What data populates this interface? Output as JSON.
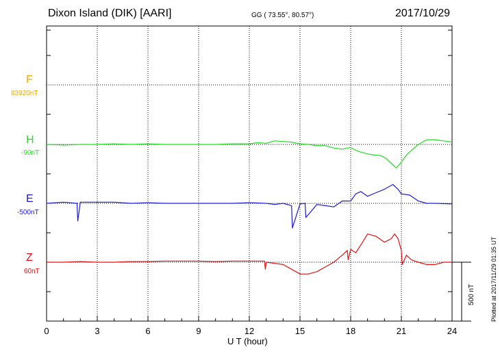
{
  "header": {
    "station": "Dixon Island (DIK)  [AARI]",
    "coords": "GG ( 73.55°,  80.57°)",
    "date": "2017/10/29"
  },
  "side_note": "Plotted at 2017/11/29 01:35 UT",
  "scale_label": "500 nT",
  "colors": {
    "F": "#f0a800",
    "H": "#22dd22",
    "E": "#1a1ad6",
    "Z": "#e01010"
  },
  "chart_data": {
    "type": "line",
    "xlabel": "U T (hour)",
    "xlim": [
      0,
      24
    ],
    "x_ticks": [
      "0",
      "3",
      "6",
      "9",
      "12",
      "15",
      "18",
      "21",
      "24"
    ],
    "scale_bar_nT": 500,
    "series": [
      {
        "name": "F",
        "baseline": "83920nT",
        "x": [],
        "values": []
      },
      {
        "name": "H",
        "baseline": "-90nT",
        "x": [
          0,
          1,
          2,
          3,
          4,
          5,
          6,
          7,
          8,
          9,
          10,
          11,
          12,
          12.5,
          13,
          13.5,
          14,
          14.5,
          15,
          15.5,
          16,
          16.5,
          17,
          17.5,
          18,
          18.3,
          18.6,
          19,
          19.4,
          19.8,
          20.1,
          20.4,
          20.7,
          21,
          21.3,
          21.6,
          22,
          22.5,
          23,
          23.5,
          24
        ],
        "values": [
          0,
          -5,
          0,
          0,
          5,
          0,
          5,
          0,
          0,
          0,
          0,
          5,
          5,
          15,
          10,
          30,
          25,
          20,
          5,
          0,
          -10,
          -10,
          -30,
          -40,
          -25,
          -50,
          -65,
          -80,
          -90,
          -95,
          -120,
          -160,
          -200,
          -150,
          -90,
          -50,
          0,
          40,
          40,
          30,
          20
        ]
      },
      {
        "name": "E",
        "baseline": "-500nT",
        "x": [
          0,
          1,
          1.8,
          1.85,
          2,
          3,
          4,
          5,
          6,
          7,
          8,
          9,
          10,
          11,
          12,
          13,
          13.5,
          14,
          14.5,
          14.55,
          15,
          15.3,
          15.35,
          16,
          16.5,
          17,
          17.5,
          18,
          18.3,
          18.6,
          19,
          19.5,
          20,
          20.5,
          20.8,
          21,
          21.5,
          22,
          22.5,
          23,
          24
        ],
        "values": [
          0,
          10,
          0,
          -150,
          10,
          10,
          10,
          0,
          5,
          0,
          0,
          0,
          0,
          0,
          5,
          0,
          -10,
          0,
          -20,
          -210,
          -5,
          0,
          -120,
          -10,
          -20,
          -30,
          20,
          20,
          80,
          100,
          60,
          90,
          120,
          160,
          120,
          80,
          70,
          20,
          0,
          0,
          -5
        ]
      },
      {
        "name": "Z",
        "baseline": "60nT",
        "x": [
          0,
          1,
          2,
          3,
          4,
          5,
          6,
          7,
          8,
          9,
          10,
          11,
          12,
          12.9,
          12.95,
          13,
          13.5,
          14,
          14.5,
          15,
          15.5,
          16,
          16.5,
          17,
          17.5,
          17.8,
          17.85,
          18,
          18.3,
          18.7,
          19,
          19.5,
          20,
          20.4,
          20.6,
          20.8,
          21,
          21.05,
          21.3,
          21.6,
          22,
          22.5,
          23,
          23.5,
          24
        ],
        "values": [
          0,
          0,
          5,
          0,
          0,
          5,
          5,
          10,
          10,
          10,
          5,
          10,
          10,
          10,
          -60,
          0,
          -10,
          -20,
          -60,
          -100,
          -100,
          -80,
          -40,
          0,
          60,
          100,
          20,
          110,
          80,
          170,
          240,
          220,
          170,
          200,
          240,
          200,
          100,
          -20,
          60,
          20,
          0,
          -20,
          -20,
          0,
          0
        ]
      }
    ]
  }
}
